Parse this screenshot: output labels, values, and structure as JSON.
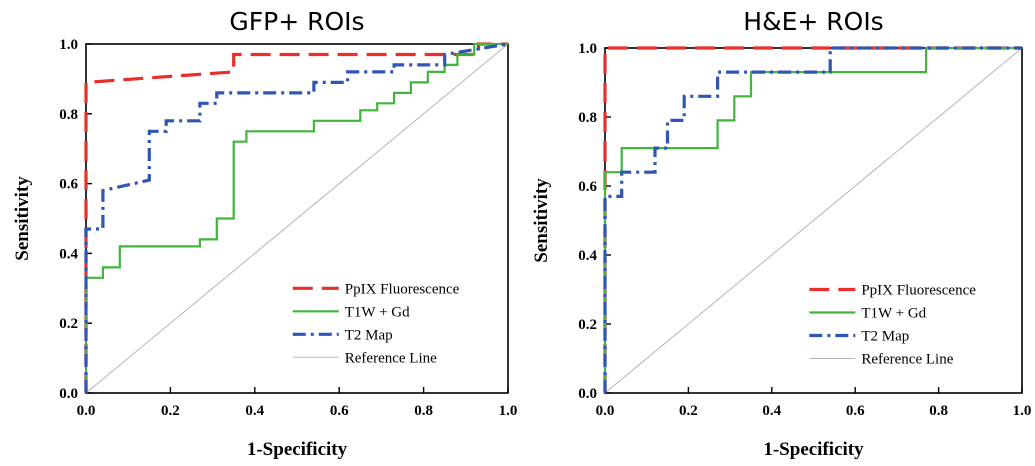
{
  "chart_data": [
    {
      "type": "line",
      "title": "GFP+ ROIs",
      "xlabel": "1-Specificity",
      "ylabel": "Sensitivity",
      "xlim": [
        0,
        1
      ],
      "ylim": [
        0,
        1
      ],
      "xticks": [
        "0.0",
        "0.2",
        "0.4",
        "0.6",
        "0.8",
        "1.0"
      ],
      "yticks": [
        "0.0",
        "0.2",
        "0.4",
        "0.6",
        "0.8",
        "1.0"
      ],
      "grid": false,
      "legend_position": "bottom-right",
      "series": [
        {
          "name": "PpIX Fluorescence",
          "color": "#e8302a",
          "style": "dashed",
          "x": [
            0,
            0,
            0,
            0,
            0.35,
            0.35,
            0.93,
            0.93,
            1.0
          ],
          "y": [
            0,
            0.72,
            0.72,
            0.89,
            0.92,
            0.97,
            0.97,
            1.0,
            1.0
          ]
        },
        {
          "name": "T1W + Gd",
          "color": "#3fb53a",
          "style": "solid",
          "x": [
            0,
            0,
            0.04,
            0.04,
            0.08,
            0.08,
            0.27,
            0.27,
            0.31,
            0.31,
            0.35,
            0.35,
            0.38,
            0.38,
            0.54,
            0.54,
            0.65,
            0.65,
            0.69,
            0.69,
            0.73,
            0.73,
            0.77,
            0.77,
            0.81,
            0.81,
            0.85,
            0.85,
            0.88,
            0.88,
            0.92,
            0.92,
            1.0
          ],
          "y": [
            0,
            0.33,
            0.33,
            0.36,
            0.36,
            0.42,
            0.42,
            0.44,
            0.44,
            0.5,
            0.5,
            0.72,
            0.72,
            0.75,
            0.75,
            0.78,
            0.78,
            0.81,
            0.81,
            0.83,
            0.83,
            0.86,
            0.86,
            0.89,
            0.89,
            0.92,
            0.92,
            0.94,
            0.94,
            0.97,
            0.97,
            1.0,
            1.0
          ]
        },
        {
          "name": "T2 Map",
          "color": "#2f56b4",
          "style": "dashdot",
          "x": [
            0,
            0,
            0.04,
            0.04,
            0.15,
            0.15,
            0.19,
            0.19,
            0.27,
            0.27,
            0.31,
            0.31,
            0.54,
            0.54,
            0.62,
            0.62,
            0.73,
            0.73,
            0.85,
            0.85,
            1.0
          ],
          "y": [
            0,
            0.47,
            0.47,
            0.58,
            0.61,
            0.75,
            0.75,
            0.78,
            0.78,
            0.83,
            0.83,
            0.86,
            0.86,
            0.89,
            0.89,
            0.92,
            0.92,
            0.94,
            0.94,
            0.97,
            1.0
          ]
        },
        {
          "name": "Reference Line",
          "color": "#b5b5b5",
          "style": "thin",
          "x": [
            0,
            1
          ],
          "y": [
            0,
            1
          ]
        }
      ]
    },
    {
      "type": "line",
      "title": "H&E+ ROIs",
      "xlabel": "1-Specificity",
      "ylabel": "Sensitivity",
      "xlim": [
        0,
        1
      ],
      "ylim": [
        0,
        1
      ],
      "xticks": [
        "0.0",
        "0.2",
        "0.4",
        "0.6",
        "0.8",
        "1.0"
      ],
      "yticks": [
        "0.0",
        "0.2",
        "0.4",
        "0.6",
        "0.8",
        "1.0"
      ],
      "grid": false,
      "legend_position": "bottom-right",
      "series": [
        {
          "name": "PpIX Fluorescence",
          "color": "#e8302a",
          "style": "dashed",
          "x": [
            0,
            0,
            1.0
          ],
          "y": [
            0,
            1.0,
            1.0
          ]
        },
        {
          "name": "T1W + Gd",
          "color": "#3fb53a",
          "style": "solid",
          "x": [
            0,
            0,
            0.04,
            0.04,
            0.27,
            0.27,
            0.31,
            0.31,
            0.35,
            0.35,
            0.77,
            0.77,
            1.0
          ],
          "y": [
            0,
            0.64,
            0.64,
            0.71,
            0.71,
            0.79,
            0.79,
            0.86,
            0.86,
            0.93,
            0.93,
            1.0,
            1.0
          ]
        },
        {
          "name": "T2 Map",
          "color": "#2f56b4",
          "style": "dashdot",
          "x": [
            0,
            0,
            0.04,
            0.04,
            0.12,
            0.12,
            0.15,
            0.15,
            0.19,
            0.19,
            0.27,
            0.27,
            0.54,
            0.54,
            1.0
          ],
          "y": [
            0,
            0.57,
            0.57,
            0.64,
            0.64,
            0.71,
            0.71,
            0.79,
            0.79,
            0.86,
            0.86,
            0.93,
            0.93,
            1.0,
            1.0
          ]
        },
        {
          "name": "Reference Line",
          "color": "#b5b5b5",
          "style": "thin",
          "x": [
            0,
            1
          ],
          "y": [
            0,
            1
          ]
        }
      ]
    }
  ]
}
